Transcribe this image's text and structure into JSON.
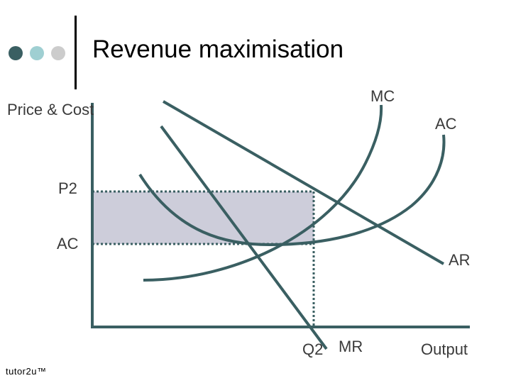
{
  "title": "Revenue maximisation",
  "labels": {
    "y_axis": "Price & Cost",
    "p2": "P2",
    "ac_level": "AC",
    "mc": "MC",
    "ac_curve": "AC",
    "ar": "AR",
    "q2": "Q2",
    "mr": "MR",
    "x_axis": "Output"
  },
  "brand": "tutor2u™",
  "colors": {
    "curve": "#3a5f62",
    "dot_dark": "#3a5f62",
    "dot_light": "#9fcfd2",
    "dot_grey": "#cccccc",
    "rect_fill": "#cdcdda"
  }
}
